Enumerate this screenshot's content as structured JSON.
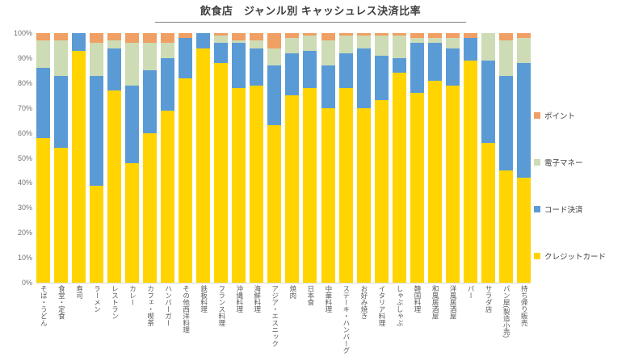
{
  "chart_data": {
    "type": "bar",
    "stacked": true,
    "unit": "percent",
    "title": "飲食店　ジャンル別 キャッシュレス決済比率",
    "xlabel": "",
    "ylabel": "",
    "ylim": [
      0,
      100
    ],
    "grid": false,
    "legend_position": "right",
    "y_ticks": [
      "100%",
      "90%",
      "80%",
      "70%",
      "60%",
      "50%",
      "40%",
      "30%",
      "20%",
      "10%",
      "0%"
    ],
    "categories": [
      "そば・うどん",
      "食堂・定食",
      "寿司",
      "ラーメン",
      "レストラン",
      "カレー",
      "カフェ・喫茶",
      "ハンバーガー",
      "その他西洋料理",
      "鉄板料理",
      "フランス料理",
      "沖縄料理",
      "海鮮料理",
      "アジア・エスニック",
      "焼肉",
      "日本食",
      "中華料理",
      "ステーキ・ハンバーグ",
      "お好み焼き",
      "イタリア料理",
      "しゃぶしゃぶ",
      "韓国料理",
      "和風居酒屋",
      "洋風居酒屋",
      "バー",
      "サラダ店",
      "パン屋(製造小売)",
      "持ち帰り販売"
    ],
    "series": [
      {
        "name": "ポイント",
        "color": "#F0A064",
        "values": [
          3,
          3,
          0,
          4,
          3,
          4,
          4,
          4,
          2,
          0,
          1,
          3,
          3,
          6,
          2,
          1,
          3,
          1,
          1,
          1,
          1,
          2,
          2,
          2,
          2,
          0,
          3,
          2
        ]
      },
      {
        "name": "電子マネー",
        "color": "#CDDCB5",
        "values": [
          11,
          14,
          0,
          13,
          3,
          17,
          11,
          6,
          0,
          0,
          3,
          1,
          3,
          7,
          6,
          6,
          10,
          7,
          5,
          8,
          9,
          2,
          2,
          4,
          0,
          11,
          14,
          10
        ]
      },
      {
        "name": "コード決済",
        "color": "#5B9BD5",
        "values": [
          28,
          29,
          7,
          44,
          17,
          31,
          25,
          21,
          16,
          6,
          8,
          18,
          15,
          24,
          17,
          15,
          17,
          14,
          24,
          18,
          6,
          20,
          15,
          15,
          9,
          33,
          38,
          46
        ]
      },
      {
        "name": "クレジットカード",
        "color": "#FFD400",
        "values": [
          58,
          54,
          93,
          39,
          77,
          48,
          60,
          69,
          82,
          94,
          88,
          78,
          79,
          63,
          75,
          78,
          70,
          78,
          70,
          73,
          84,
          76,
          81,
          79,
          89,
          56,
          45,
          42
        ]
      }
    ]
  }
}
